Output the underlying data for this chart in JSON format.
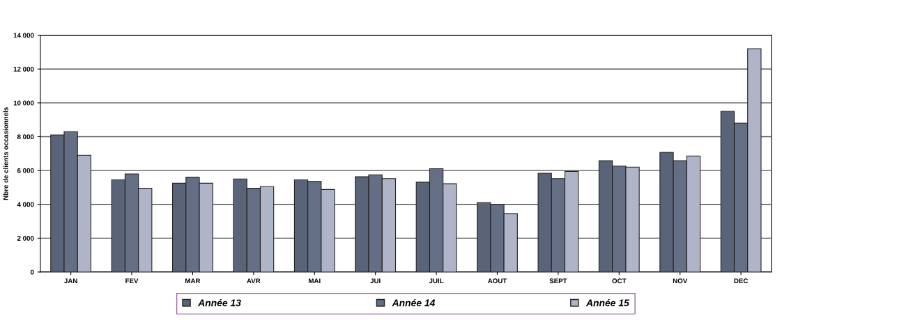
{
  "chart_data": {
    "type": "bar",
    "ylabel": "Nbre de clients occasionnels",
    "categories": [
      "JAN",
      "FEV",
      "MAR",
      "AVR",
      "MAI",
      "JUI",
      "JUIL",
      "AOUT",
      "SEPT",
      "OCT",
      "NOV",
      "DEC"
    ],
    "series": [
      {
        "name": "Année 13",
        "color": "#5a6478",
        "values": [
          8100,
          5450,
          5250,
          5500,
          5450,
          5630,
          5310,
          4100,
          5840,
          6580,
          7070,
          9500
        ]
      },
      {
        "name": "Année 14",
        "color": "#646e84",
        "values": [
          8300,
          5800,
          5600,
          4950,
          5350,
          5750,
          6110,
          3990,
          5520,
          6260,
          6580,
          8800
        ]
      },
      {
        "name": "Année 15",
        "color": "#b0b4c8",
        "values": [
          6900,
          4950,
          5250,
          5050,
          4880,
          5520,
          5220,
          3450,
          5950,
          6200,
          6860,
          13200
        ]
      }
    ],
    "ylim": [
      0,
      14000
    ],
    "yticks": [
      0,
      {
        "value": 2000,
        "label": "2 000"
      },
      {
        "value": 4000,
        "label": "4 000"
      },
      {
        "value": 6000,
        "label": "6 000"
      },
      {
        "value": 8000,
        "label": "8 000"
      },
      {
        "value": 10000,
        "label": "10 000"
      },
      {
        "value": 12000,
        "label": "12 000"
      },
      {
        "value": 14000,
        "label": "14 000"
      }
    ],
    "grid": "y",
    "legend": "bottom"
  }
}
